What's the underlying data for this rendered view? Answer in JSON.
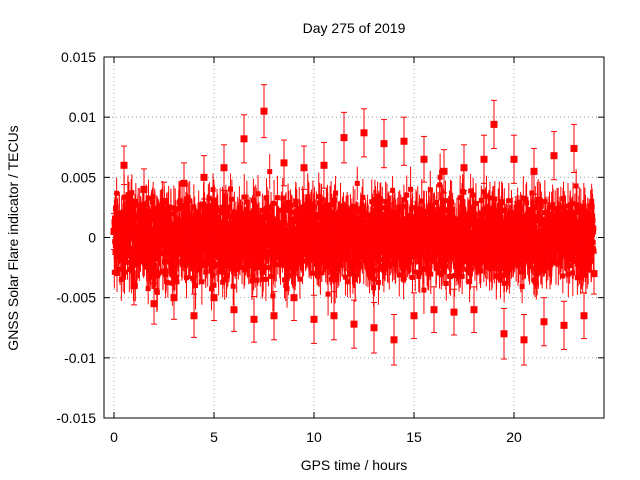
{
  "chart_data": {
    "type": "scatter",
    "title": "Day 275 of 2019",
    "xlabel": "GPS time / hours",
    "ylabel": "GNSS Solar Flare indicator / TECUs",
    "xlim": [
      -0.5,
      24.5
    ],
    "ylim": [
      -0.015,
      0.015
    ],
    "x_ticks": [
      0,
      5,
      10,
      15,
      20
    ],
    "x_tick_labels": [
      "0",
      "5",
      "10",
      "15",
      "20"
    ],
    "y_ticks": [
      -0.015,
      -0.01,
      -0.005,
      0,
      0.005,
      0.01,
      0.015
    ],
    "y_tick_labels": [
      "-0.015",
      "-0.01",
      "-0.005",
      "0",
      "0.005",
      "0.01",
      "0.015"
    ],
    "grid": true,
    "marker": "square",
    "error_bars": true,
    "series_color": "#ff0000",
    "series": [
      {
        "name": "GNSS Solar Flare indicator",
        "x": [
          0.0,
          0.5,
          1.0,
          1.5,
          2.0,
          2.5,
          3.0,
          3.5,
          4.0,
          4.5,
          5.0,
          5.5,
          6.0,
          6.5,
          7.0,
          7.5,
          8.0,
          8.5,
          9.0,
          9.5,
          10.0,
          10.5,
          11.0,
          11.5,
          12.0,
          12.5,
          13.0,
          13.5,
          14.0,
          14.5,
          15.0,
          15.5,
          16.0,
          16.5,
          17.0,
          17.5,
          18.0,
          18.5,
          19.0,
          19.5,
          20.0,
          20.5,
          21.0,
          21.5,
          22.0,
          22.5,
          23.0,
          23.5,
          24.0
        ],
        "y": [
          0.0005,
          0.006,
          -0.004,
          0.004,
          -0.0055,
          0.003,
          -0.005,
          0.0045,
          -0.0065,
          0.005,
          -0.005,
          0.0058,
          -0.006,
          0.0082,
          -0.0068,
          0.0105,
          -0.0065,
          0.0062,
          -0.005,
          0.0058,
          -0.0068,
          0.006,
          -0.0065,
          0.0083,
          -0.0072,
          0.0087,
          -0.0075,
          0.0078,
          -0.0085,
          0.008,
          -0.0065,
          0.0065,
          -0.006,
          0.0055,
          -0.0062,
          0.0058,
          -0.006,
          0.0065,
          0.0094,
          -0.008,
          0.0065,
          -0.0085,
          0.0055,
          -0.007,
          0.0068,
          -0.0073,
          0.0074,
          -0.0065,
          -0.003
        ],
        "err": [
          0.0015,
          0.0016,
          0.0016,
          0.0017,
          0.0017,
          0.0016,
          0.0018,
          0.0017,
          0.0018,
          0.0018,
          0.0019,
          0.0019,
          0.0018,
          0.002,
          0.0019,
          0.0022,
          0.002,
          0.0019,
          0.0019,
          0.0018,
          0.002,
          0.0019,
          0.002,
          0.0021,
          0.002,
          0.002,
          0.0021,
          0.002,
          0.0021,
          0.002,
          0.0019,
          0.0019,
          0.0019,
          0.0018,
          0.0019,
          0.0019,
          0.0019,
          0.002,
          0.002,
          0.0021,
          0.002,
          0.0021,
          0.0019,
          0.002,
          0.002,
          0.002,
          0.002,
          0.0019,
          0.0017
        ],
        "point_count": 2880
      }
    ]
  }
}
